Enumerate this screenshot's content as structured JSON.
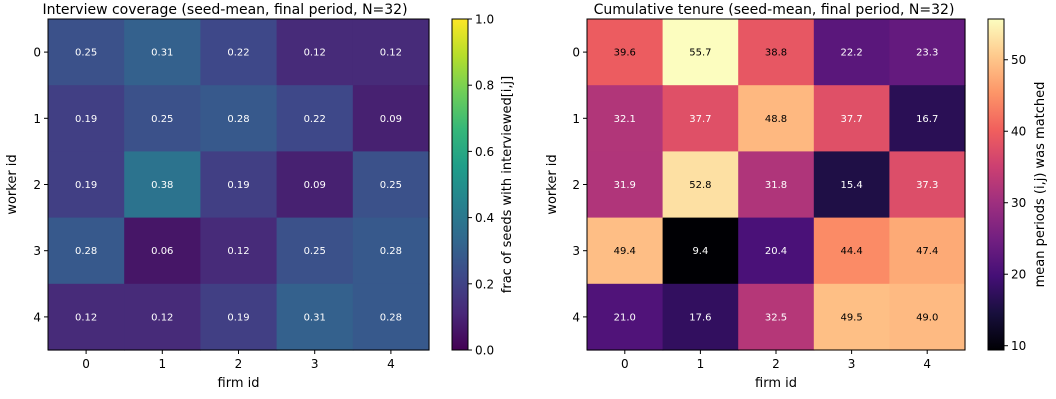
{
  "chart_data": [
    {
      "type": "heatmap",
      "title": "Interview coverage (seed-mean, final period, N=32)",
      "xlabel": "firm id",
      "ylabel": "worker id",
      "x_ticks": [
        "0",
        "1",
        "2",
        "3",
        "4"
      ],
      "y_ticks": [
        "0",
        "1",
        "2",
        "3",
        "4"
      ],
      "values": [
        [
          0.25,
          0.31,
          0.22,
          0.12,
          0.12
        ],
        [
          0.19,
          0.25,
          0.28,
          0.22,
          0.09
        ],
        [
          0.19,
          0.38,
          0.19,
          0.09,
          0.25
        ],
        [
          0.28,
          0.06,
          0.12,
          0.25,
          0.28
        ],
        [
          0.12,
          0.12,
          0.19,
          0.31,
          0.28
        ]
      ],
      "cell_labels": [
        [
          "0.25",
          "0.31",
          "0.22",
          "0.12",
          "0.12"
        ],
        [
          "0.19",
          "0.25",
          "0.28",
          "0.22",
          "0.09"
        ],
        [
          "0.19",
          "0.38",
          "0.19",
          "0.09",
          "0.25"
        ],
        [
          "0.28",
          "0.06",
          "0.12",
          "0.25",
          "0.28"
        ],
        [
          "0.12",
          "0.12",
          "0.19",
          "0.31",
          "0.28"
        ]
      ],
      "colormap": "viridis",
      "colorbar": {
        "label": "frac of seeds with interviewed[i,j]",
        "range": [
          0.0,
          1.0
        ],
        "ticks": [
          0.0,
          0.2,
          0.4,
          0.6,
          0.8,
          1.0
        ],
        "tick_labels": [
          "0.0",
          "0.2",
          "0.4",
          "0.6",
          "0.8",
          "1.0"
        ]
      }
    },
    {
      "type": "heatmap",
      "title": "Cumulative tenure (seed-mean, final period, N=32)",
      "xlabel": "firm id",
      "ylabel": "worker id",
      "x_ticks": [
        "0",
        "1",
        "2",
        "3",
        "4"
      ],
      "y_ticks": [
        "0",
        "1",
        "2",
        "3",
        "4"
      ],
      "values": [
        [
          39.6,
          55.7,
          38.8,
          22.2,
          23.3
        ],
        [
          32.1,
          37.7,
          48.8,
          37.7,
          16.7
        ],
        [
          31.9,
          52.8,
          31.8,
          15.4,
          37.3
        ],
        [
          49.4,
          9.4,
          20.4,
          44.4,
          47.4
        ],
        [
          21.0,
          17.6,
          32.5,
          49.5,
          49.0
        ]
      ],
      "cell_labels": [
        [
          "39.6",
          "55.7",
          "38.8",
          "22.2",
          "23.3"
        ],
        [
          "32.1",
          "37.7",
          "48.8",
          "37.7",
          "16.7"
        ],
        [
          "31.9",
          "52.8",
          "31.8",
          "15.4",
          "37.3"
        ],
        [
          "49.4",
          "9.4",
          "20.4",
          "44.4",
          "47.4"
        ],
        [
          "21.0",
          "17.6",
          "32.5",
          "49.5",
          "49.0"
        ]
      ],
      "colormap": "magma",
      "colorbar": {
        "label": "mean periods (i,j) was matched",
        "range": [
          9.4,
          55.7
        ],
        "ticks": [
          10,
          20,
          30,
          40,
          50
        ],
        "tick_labels": [
          "10",
          "20",
          "30",
          "40",
          "50"
        ]
      }
    }
  ]
}
